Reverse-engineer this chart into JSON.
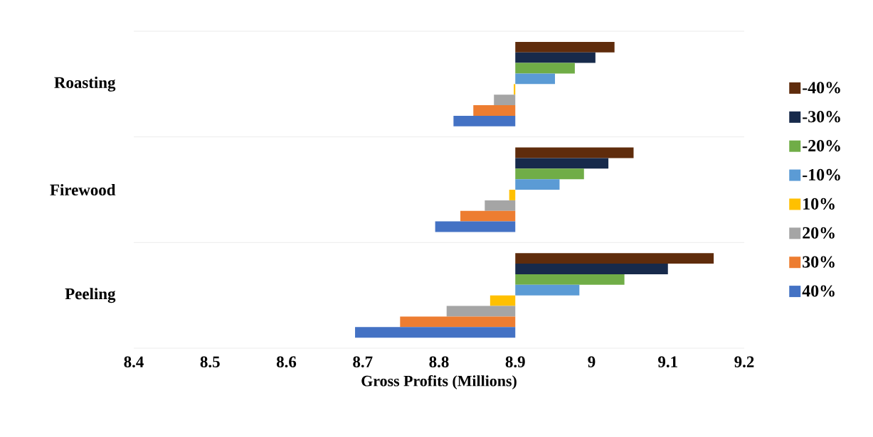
{
  "chart_data": {
    "type": "bar",
    "orientation": "horizontal",
    "xlabel": "Gross Profits (Millions)",
    "categories": [
      "Roasting",
      "Firewood",
      "Peeling"
    ],
    "series": [
      {
        "name": "-40%",
        "color": "#5f2c0c",
        "base": [
          8.9,
          8.9,
          8.9
        ],
        "values": [
          0.13,
          0.155,
          0.26
        ]
      },
      {
        "name": "-30%",
        "color": "#172a4b",
        "base": [
          8.9,
          8.9,
          8.9
        ],
        "values": [
          0.105,
          0.122,
          0.2
        ]
      },
      {
        "name": "-20%",
        "color": "#70ad47",
        "base": [
          8.9,
          8.9,
          8.9
        ],
        "values": [
          0.078,
          0.09,
          0.143
        ]
      },
      {
        "name": "-10%",
        "color": "#5b9bd5",
        "base": [
          8.9,
          8.9,
          8.9
        ],
        "values": [
          0.052,
          0.058,
          0.084
        ]
      },
      {
        "name": "10%",
        "color": "#ffc000",
        "base": [
          8.9,
          8.9,
          8.9
        ],
        "values": [
          -0.002,
          -0.008,
          -0.033
        ]
      },
      {
        "name": "20%",
        "color": "#a5a5a5",
        "base": [
          8.9,
          8.9,
          8.9
        ],
        "values": [
          -0.028,
          -0.04,
          -0.09
        ]
      },
      {
        "name": "30%",
        "color": "#ed7d31",
        "base": [
          8.9,
          8.9,
          8.9
        ],
        "values": [
          -0.055,
          -0.072,
          -0.151
        ]
      },
      {
        "name": "40%",
        "color": "#4472c4",
        "base": [
          8.9,
          8.9,
          8.9
        ],
        "values": [
          -0.081,
          -0.105,
          -0.21
        ]
      }
    ],
    "xlim": [
      8.4,
      9.2
    ],
    "xticks": [
      8.4,
      8.5,
      8.6,
      8.7,
      8.8,
      8.9,
      9,
      9.1,
      9.2
    ],
    "grid": "y",
    "legend": "right"
  }
}
